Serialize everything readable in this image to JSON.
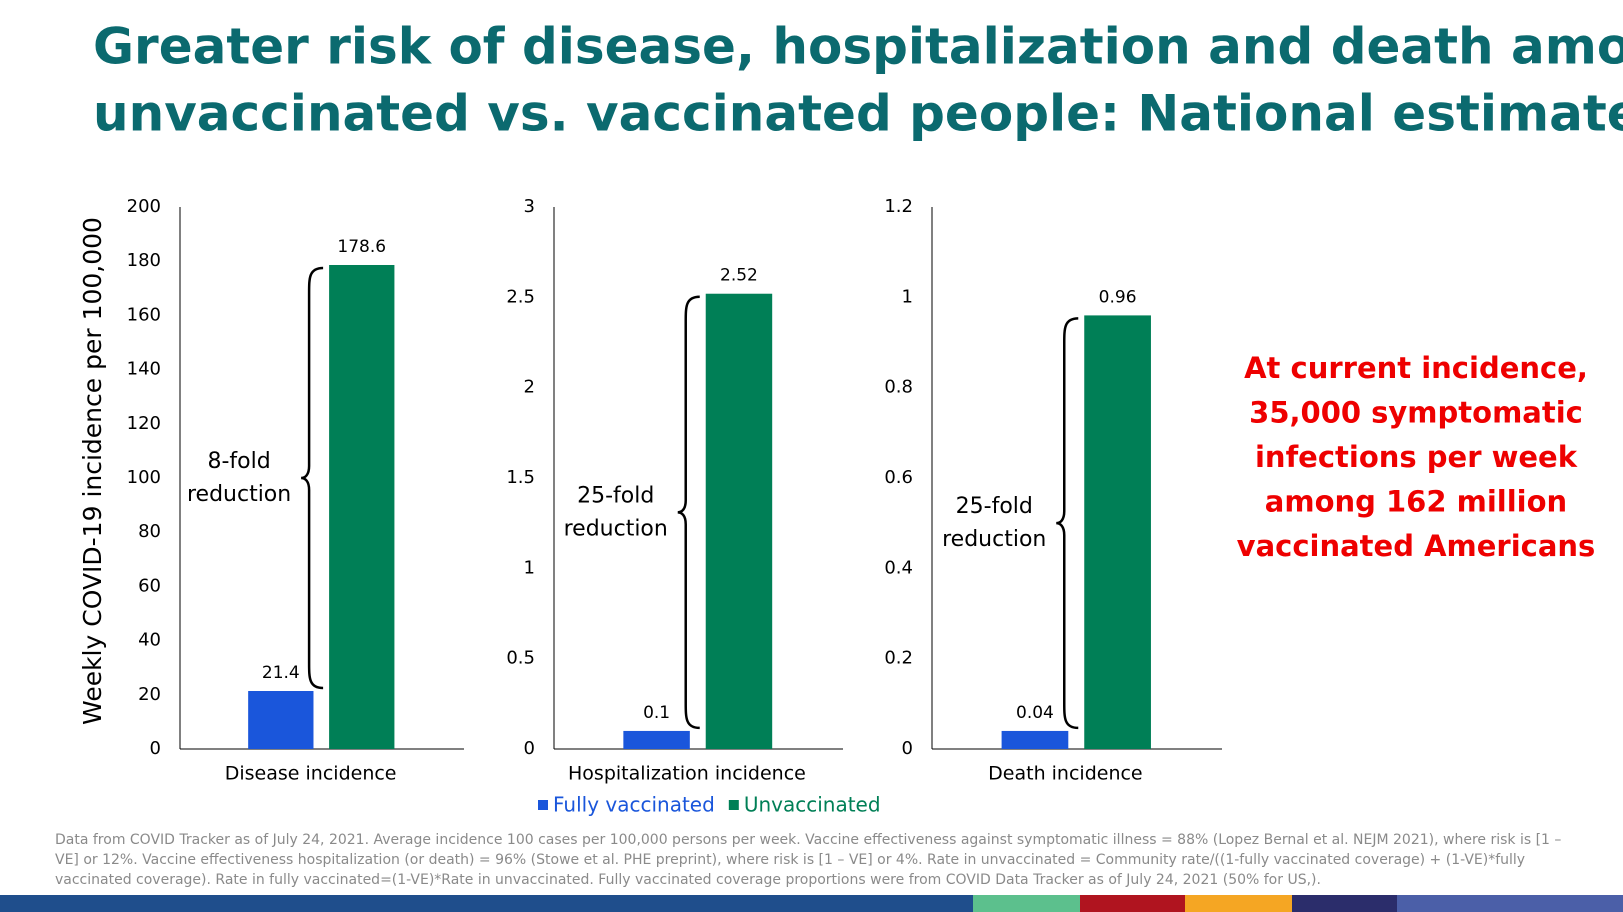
{
  "title": [
    "Greater risk of disease, hospitalization and death among",
    "unvaccinated vs. vaccinated people: National estimates"
  ],
  "y_label": "Weekly COVID-19 incidence per 100,000",
  "legend": {
    "series": [
      {
        "name": "Fully vaccinated",
        "color": "#1a56db"
      },
      {
        "name": "Unvaccinated",
        "color": "#007f56"
      }
    ]
  },
  "side_note": [
    "At current incidence,",
    "35,000 symptomatic",
    "infections per week",
    "among 162 million",
    "vaccinated Americans"
  ],
  "footnote": "Data from COVID Tracker as of July 24, 2021. Average incidence 100 cases per 100,000 persons per week. Vaccine effectiveness against symptomatic illness = 88% (Lopez Bernal et al. NEJM 2021), where risk is [1 – VE] or 12%. Vaccine effectiveness hospitalization (or death) = 96% (Stowe et al. PHE preprint), where risk is [1 – VE] or 4%.  Rate in unvaccinated = Community rate/((1-fully vaccinated coverage) + (1-VE)*fully vaccinated coverage). Rate in fully vaccinated=(1-VE)*Rate in unvaccinated. Fully vaccinated coverage proportions were from COVID Data Tracker as of July 24, 2021 (50% for US,).",
  "chart_data": [
    {
      "type": "bar",
      "categories": [
        "Disease incidence"
      ],
      "series": [
        {
          "values": [
            21.4
          ]
        },
        {
          "values": [
            178.6
          ]
        }
      ],
      "ylim": [
        0,
        200
      ],
      "yticks": [
        0,
        20,
        40,
        60,
        80,
        100,
        120,
        140,
        160,
        180,
        200
      ],
      "annotation": [
        "8-fold",
        "reduction"
      ]
    },
    {
      "type": "bar",
      "categories": [
        "Hospitalization incidence"
      ],
      "series": [
        {
          "values": [
            0.1
          ]
        },
        {
          "values": [
            2.52
          ]
        }
      ],
      "ylim": [
        0,
        3
      ],
      "yticks": [
        0,
        0.5,
        1,
        1.5,
        2,
        2.5,
        3
      ],
      "annotation": [
        "25-fold",
        "reduction"
      ]
    },
    {
      "type": "bar",
      "categories": [
        "Death incidence"
      ],
      "series": [
        {
          "values": [
            0.04
          ]
        },
        {
          "values": [
            0.96
          ]
        }
      ],
      "ylim": [
        0,
        1.2
      ],
      "yticks": [
        0,
        0.2,
        0.4,
        0.6,
        0.8,
        1,
        1.2
      ],
      "annotation": [
        "25-fold",
        "reduction"
      ]
    }
  ]
}
